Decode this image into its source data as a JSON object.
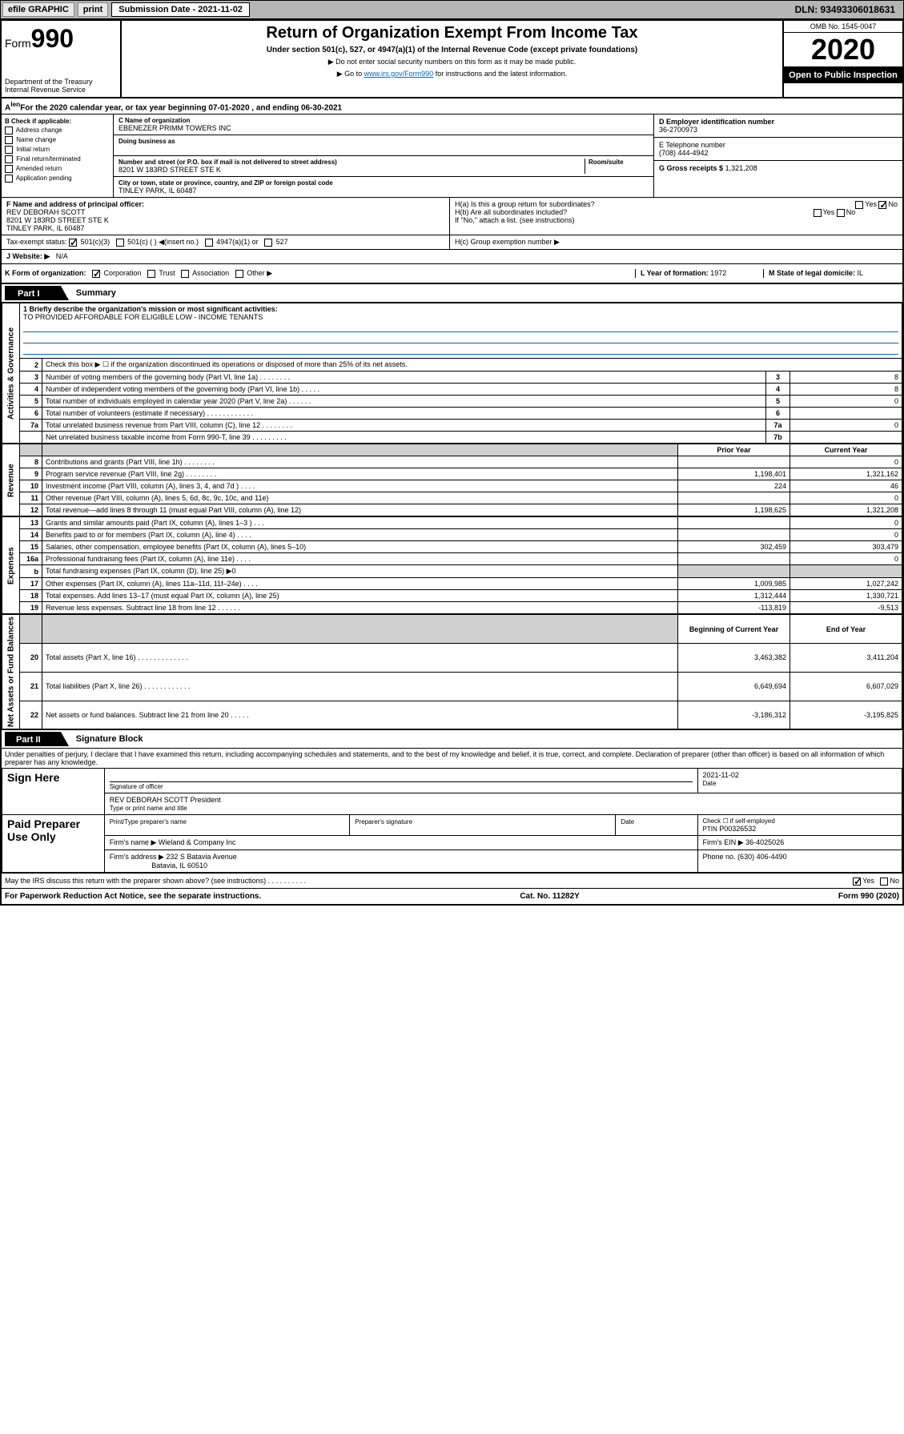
{
  "topbar": {
    "efile": "efile GRAPHIC",
    "print": "print",
    "sub_label": "Submission Date - 2021-11-02",
    "dln": "DLN: 93493306018631"
  },
  "header": {
    "form_label": "Form",
    "form_num": "990",
    "dept": "Department of the Treasury\nInternal Revenue Service",
    "title": "Return of Organization Exempt From Income Tax",
    "subtitle": "Under section 501(c), 527, or 4947(a)(1) of the Internal Revenue Code (except private foundations)",
    "note1": "▶ Do not enter social security numbers on this form as it may be made public.",
    "note2_pre": "▶ Go to ",
    "note2_link": "www.irs.gov/Form990",
    "note2_post": " for instructions and the latest information.",
    "omb": "OMB No. 1545-0047",
    "year": "2020",
    "open_public": "Open to Public Inspection"
  },
  "tax_year": "For the 2020 calendar year, or tax year beginning 07-01-2020     , and ending 06-30-2021",
  "box_b": {
    "label": "B Check if applicable:",
    "items": [
      "Address change",
      "Name change",
      "Initial return",
      "Final return/terminated",
      "Amended return",
      "Application pending"
    ]
  },
  "box_c": {
    "name_lbl": "C Name of organization",
    "name": "EBENEZER PRIMM TOWERS INC",
    "dba_lbl": "Doing business as",
    "dba": "",
    "addr_lbl": "Number and street (or P.O. box if mail is not delivered to street address)",
    "room_lbl": "Room/suite",
    "addr": "8201 W 183RD STREET STE K",
    "city_lbl": "City or town, state or province, country, and ZIP or foreign postal code",
    "city": "TINLEY PARK, IL  60487"
  },
  "box_d": {
    "lbl": "D Employer identification number",
    "val": "36-2700973"
  },
  "box_e": {
    "lbl": "E Telephone number",
    "val": "(708) 444-4942"
  },
  "box_g": {
    "lbl": "G Gross receipts $",
    "val": "1,321,208"
  },
  "box_f": {
    "lbl": "F  Name and address of principal officer:",
    "name": "REV DEBORAH SCOTT",
    "addr": "8201 W 183RD STREET STE K\nTINLEY PARK, IL  60487"
  },
  "box_h": {
    "a": "H(a)  Is this a group return for subordinates?",
    "b": "H(b)  Are all subordinates included?",
    "b_note": "If \"No,\" attach a list. (see instructions)",
    "c": "H(c)  Group exemption number ▶"
  },
  "tax_exempt": {
    "lbl": "Tax-exempt status:",
    "opts": [
      "501(c)(3)",
      "501(c) (  ) ◀(insert no.)",
      "4947(a)(1) or",
      "527"
    ]
  },
  "website": {
    "lbl": "J   Website: ▶",
    "val": "N/A"
  },
  "box_k": {
    "lbl": "K Form of organization:",
    "opts": [
      "Corporation",
      "Trust",
      "Association",
      "Other ▶"
    ]
  },
  "box_l": {
    "lbl": "L Year of formation:",
    "val": "1972"
  },
  "box_m": {
    "lbl": "M State of legal domicile:",
    "val": "IL"
  },
  "part1": {
    "label": "Part I",
    "title": "Summary",
    "mission_lbl": "1   Briefly describe the organization's mission or most significant activities:",
    "mission": "TO PROVIDED AFFORDABLE FOR ELIGIBLE LOW - INCOME TENANTS",
    "line2": "Check this box ▶ ☐  if the organization discontinued its operations or disposed of more than 25% of its net assets.",
    "sections": {
      "gov": "Activities & Governance",
      "rev": "Revenue",
      "exp": "Expenses",
      "net": "Net Assets or Fund Balances"
    },
    "rows_top": [
      {
        "n": "3",
        "d": "Number of voting members of the governing body (Part VI, line 1a)   .    .    .    .    .    .    .    .",
        "b": "3",
        "v": "8"
      },
      {
        "n": "4",
        "d": "Number of independent voting members of the governing body (Part VI, line 1b)   .    .    .    .    .",
        "b": "4",
        "v": "8"
      },
      {
        "n": "5",
        "d": "Total number of individuals employed in calendar year 2020 (Part V, line 2a)   .    .    .    .    .    .",
        "b": "5",
        "v": "0"
      },
      {
        "n": "6",
        "d": "Total number of volunteers (estimate if necessary)   .    .    .    .    .    .    .    .    .    .    .    .",
        "b": "6",
        "v": ""
      },
      {
        "n": "7a",
        "d": "Total unrelated business revenue from Part VIII, column (C), line 12   .    .    .    .    .    .    .    .",
        "b": "7a",
        "v": "0"
      },
      {
        "n": "",
        "d": "Net unrelated business taxable income from Form 990-T, line 39   .    .    .    .    .    .    .    .    .",
        "b": "7b",
        "v": ""
      }
    ],
    "col_headers": {
      "prior": "Prior Year",
      "current": "Current Year"
    },
    "rows_rev": [
      {
        "n": "8",
        "d": "Contributions and grants (Part VIII, line 1h)   .    .    .    .    .    .    .    .",
        "p": "",
        "c": "0"
      },
      {
        "n": "9",
        "d": "Program service revenue (Part VIII, line 2g)   .    .    .    .    .    .    .    .",
        "p": "1,198,401",
        "c": "1,321,162"
      },
      {
        "n": "10",
        "d": "Investment income (Part VIII, column (A), lines 3, 4, and 7d )   .    .    .    .",
        "p": "224",
        "c": "46"
      },
      {
        "n": "11",
        "d": "Other revenue (Part VIII, column (A), lines 5, 6d, 8c, 9c, 10c, and 11e)",
        "p": "",
        "c": "0"
      },
      {
        "n": "12",
        "d": "Total revenue—add lines 8 through 11 (must equal Part VIII, column (A), line 12)",
        "p": "1,198,625",
        "c": "1,321,208"
      }
    ],
    "rows_exp": [
      {
        "n": "13",
        "d": "Grants and similar amounts paid (Part IX, column (A), lines 1–3 )   .    .    .",
        "p": "",
        "c": "0"
      },
      {
        "n": "14",
        "d": "Benefits paid to or for members (Part IX, column (A), line 4)   .    .    .    .",
        "p": "",
        "c": "0"
      },
      {
        "n": "15",
        "d": "Salaries, other compensation, employee benefits (Part IX, column (A), lines 5–10)",
        "p": "302,459",
        "c": "303,479"
      },
      {
        "n": "16a",
        "d": "Professional fundraising fees (Part IX, column (A), line 11e)   .    .    .    .",
        "p": "",
        "c": "0"
      },
      {
        "n": "b",
        "d": "Total fundraising expenses (Part IX, column (D), line 25) ▶0",
        "p": "shaded",
        "c": "shaded"
      },
      {
        "n": "17",
        "d": "Other expenses (Part IX, column (A), lines 11a–11d, 11f–24e)   .    .    .    .",
        "p": "1,009,985",
        "c": "1,027,242"
      },
      {
        "n": "18",
        "d": "Total expenses. Add lines 13–17 (must equal Part IX, column (A), line 25)",
        "p": "1,312,444",
        "c": "1,330,721"
      },
      {
        "n": "19",
        "d": "Revenue less expenses. Subtract line 18 from line 12   .    .    .    .    .    .",
        "p": "-113,819",
        "c": "-9,513"
      }
    ],
    "col_headers2": {
      "begin": "Beginning of Current Year",
      "end": "End of Year"
    },
    "rows_net": [
      {
        "n": "20",
        "d": "Total assets (Part X, line 16)   .    .    .    .    .    .    .    .    .    .    .    .    .",
        "p": "3,463,382",
        "c": "3,411,204"
      },
      {
        "n": "21",
        "d": "Total liabilities (Part X, line 26)   .    .    .    .    .    .    .    .    .    .    .    .",
        "p": "6,649,694",
        "c": "6,607,029"
      },
      {
        "n": "22",
        "d": "Net assets or fund balances. Subtract line 21 from line 20   .    .    .    .    .",
        "p": "-3,186,312",
        "c": "-3,195,825"
      }
    ]
  },
  "part2": {
    "label": "Part II",
    "title": "Signature Block",
    "penalties": "Under penalties of perjury, I declare that I have examined this return, including accompanying schedules and statements, and to the best of my knowledge and belief, it is true, correct, and complete. Declaration of preparer (other than officer) is based on all information of which preparer has any knowledge.",
    "sign_here": "Sign Here",
    "sig_officer": "Signature of officer",
    "sig_date": "2021-11-02",
    "date_lbl": "Date",
    "officer_name": "REV DEBORAH SCOTT  President",
    "name_title_lbl": "Type or print name and title",
    "paid_prep": "Paid Preparer Use Only",
    "prep_name_lbl": "Print/Type preparer's name",
    "prep_sig_lbl": "Preparer's signature",
    "prep_date_lbl": "Date",
    "check_self": "Check ☐ if self-employed",
    "ptin_lbl": "PTIN",
    "ptin": "P00326532",
    "firm_name_lbl": "Firm's name    ▶",
    "firm_name": "Wieland & Company Inc",
    "firm_ein_lbl": "Firm's EIN ▶",
    "firm_ein": "36-4025026",
    "firm_addr_lbl": "Firm's address ▶",
    "firm_addr1": "232 S Batavia Avenue",
    "firm_addr2": "Batavia, IL  60510",
    "phone_lbl": "Phone no.",
    "phone": "(630) 406-4490",
    "discuss": "May the IRS discuss this return with the preparer shown above? (see instructions)   .    .    .    .    .    .    .    .    .    ."
  },
  "footer": {
    "paperwork": "For Paperwork Reduction Act Notice, see the separate instructions.",
    "cat": "Cat. No. 11282Y",
    "form": "Form 990 (2020)"
  },
  "yes": "Yes",
  "no": "No"
}
